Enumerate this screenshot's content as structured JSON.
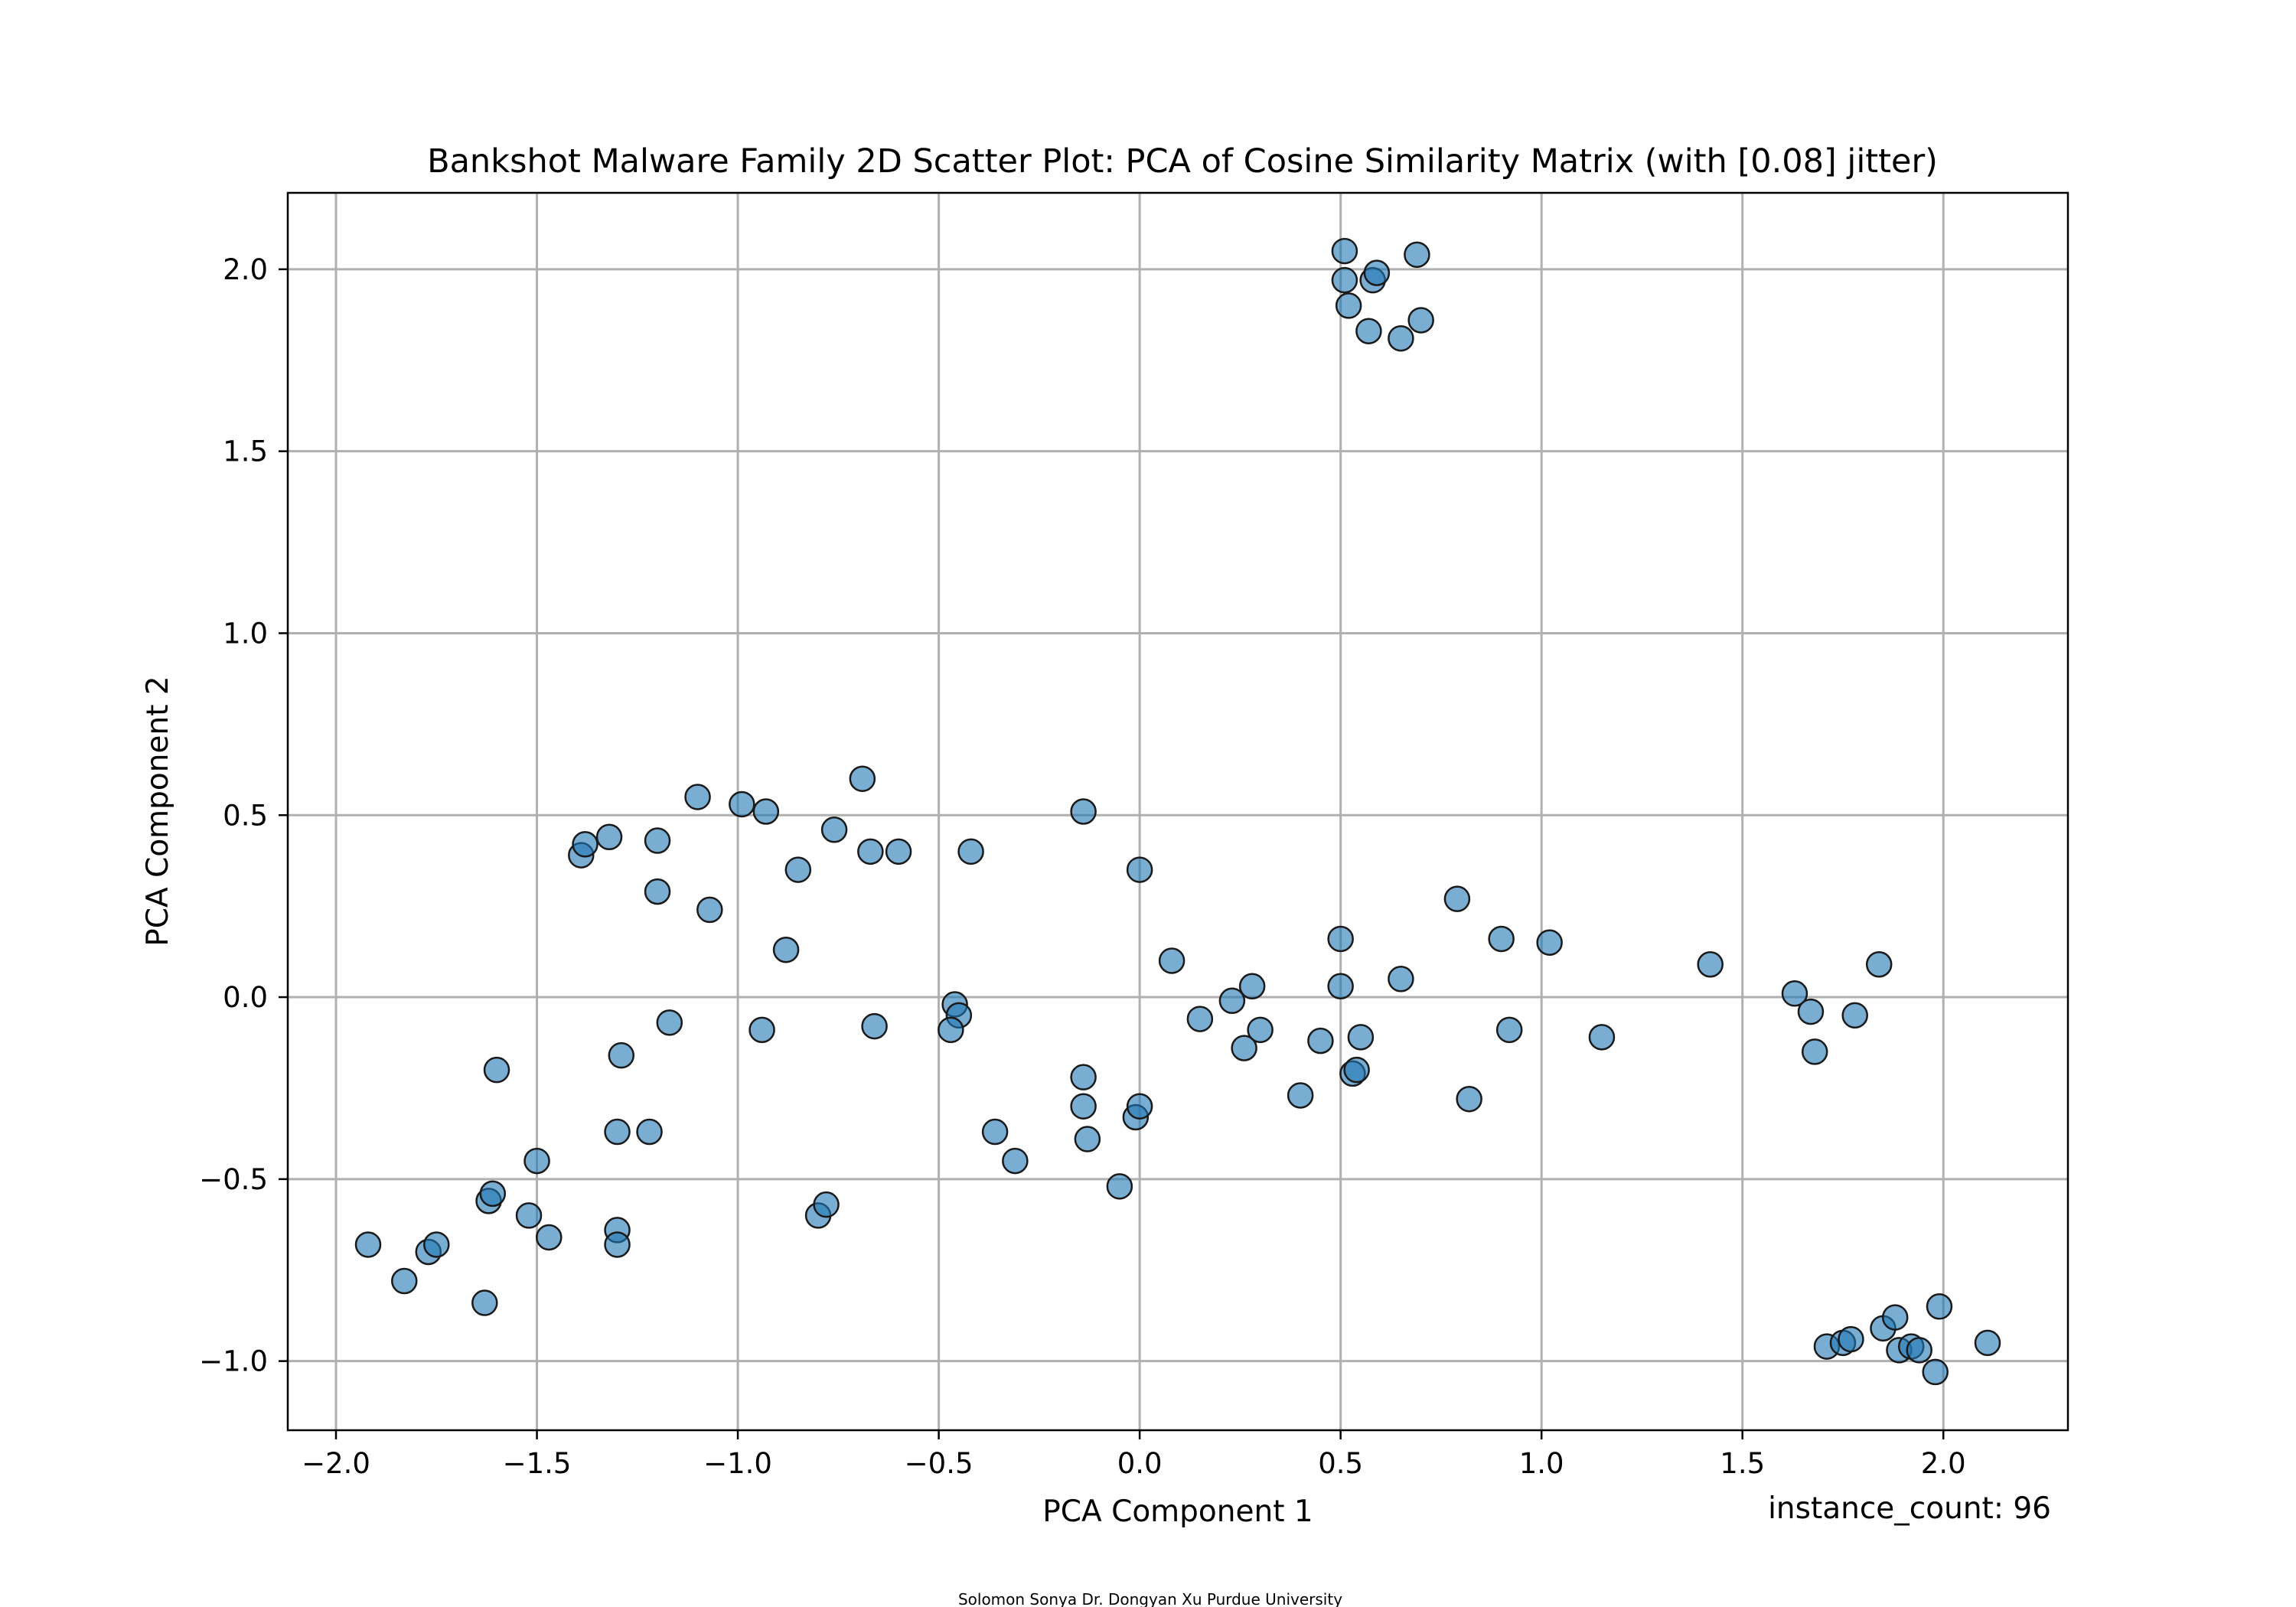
{
  "chart_data": {
    "type": "scatter",
    "title": "Bankshot Malware Family 2D Scatter Plot: PCA of Cosine Similarity Matrix (with [0.08] jitter)",
    "xlabel": "PCA Component 1",
    "ylabel": "PCA Component 2",
    "xlim": [
      -2.12,
      2.31
    ],
    "ylim": [
      -1.19,
      2.21
    ],
    "xticks": [
      -2.0,
      -1.5,
      -1.0,
      -0.5,
      0.0,
      0.5,
      1.0,
      1.5,
      2.0
    ],
    "yticks": [
      -1.0,
      -0.5,
      0.0,
      0.5,
      1.0,
      1.5,
      2.0
    ],
    "xtick_labels": [
      "−2.0",
      "−1.5",
      "−1.0",
      "−0.5",
      "0.0",
      "0.5",
      "1.0",
      "1.5",
      "2.0"
    ],
    "ytick_labels": [
      "−1.0",
      "−0.5",
      "0.0",
      "0.5",
      "1.0",
      "1.5",
      "2.0"
    ],
    "grid": true,
    "point_color": "#1f77b4",
    "annotation": "instance_count: 96",
    "footer": "Solomon Sonya    Dr. Dongyan Xu    Purdue University",
    "points": [
      [
        0.51,
        2.05
      ],
      [
        0.51,
        1.97
      ],
      [
        0.52,
        1.9
      ],
      [
        0.58,
        1.97
      ],
      [
        0.59,
        1.99
      ],
      [
        0.69,
        2.04
      ],
      [
        0.57,
        1.83
      ],
      [
        0.65,
        1.81
      ],
      [
        0.7,
        1.86
      ],
      [
        -1.92,
        -0.68
      ],
      [
        -1.83,
        -0.78
      ],
      [
        -1.77,
        -0.7
      ],
      [
        -1.75,
        -0.68
      ],
      [
        -1.63,
        -0.84
      ],
      [
        -1.62,
        -0.56
      ],
      [
        -1.61,
        -0.54
      ],
      [
        -1.6,
        -0.2
      ],
      [
        -1.52,
        -0.6
      ],
      [
        -1.5,
        -0.45
      ],
      [
        -1.47,
        -0.66
      ],
      [
        -1.3,
        -0.64
      ],
      [
        -1.3,
        -0.68
      ],
      [
        -1.3,
        -0.37
      ],
      [
        -1.29,
        -0.16
      ],
      [
        -1.22,
        -0.37
      ],
      [
        -1.17,
        -0.07
      ],
      [
        -1.39,
        0.39
      ],
      [
        -1.38,
        0.42
      ],
      [
        -1.32,
        0.44
      ],
      [
        -1.2,
        0.43
      ],
      [
        -1.2,
        0.29
      ],
      [
        -1.1,
        0.55
      ],
      [
        -1.07,
        0.24
      ],
      [
        -0.99,
        0.53
      ],
      [
        -0.93,
        0.51
      ],
      [
        -0.85,
        0.35
      ],
      [
        -0.88,
        0.13
      ],
      [
        -0.76,
        0.46
      ],
      [
        -0.69,
        0.6
      ],
      [
        -0.67,
        0.4
      ],
      [
        -0.6,
        0.4
      ],
      [
        -0.42,
        0.4
      ],
      [
        -0.14,
        0.51
      ],
      [
        0.0,
        0.35
      ],
      [
        -0.94,
        -0.09
      ],
      [
        -0.66,
        -0.08
      ],
      [
        -0.8,
        -0.6
      ],
      [
        -0.78,
        -0.57
      ],
      [
        -0.46,
        -0.02
      ],
      [
        -0.45,
        -0.05
      ],
      [
        -0.47,
        -0.09
      ],
      [
        -0.36,
        -0.37
      ],
      [
        -0.31,
        -0.45
      ],
      [
        -0.14,
        -0.22
      ],
      [
        -0.14,
        -0.3
      ],
      [
        -0.13,
        -0.39
      ],
      [
        -0.05,
        -0.52
      ],
      [
        -0.01,
        -0.33
      ],
      [
        0.0,
        -0.3
      ],
      [
        0.08,
        0.1
      ],
      [
        0.15,
        -0.06
      ],
      [
        0.23,
        -0.01
      ],
      [
        0.26,
        -0.14
      ],
      [
        0.28,
        0.03
      ],
      [
        0.3,
        -0.09
      ],
      [
        0.4,
        -0.27
      ],
      [
        0.45,
        -0.12
      ],
      [
        0.5,
        0.16
      ],
      [
        0.5,
        0.03
      ],
      [
        0.53,
        -0.21
      ],
      [
        0.54,
        -0.2
      ],
      [
        0.55,
        -0.11
      ],
      [
        0.65,
        0.05
      ],
      [
        0.79,
        0.27
      ],
      [
        0.82,
        -0.28
      ],
      [
        0.9,
        0.16
      ],
      [
        0.92,
        -0.09
      ],
      [
        1.02,
        0.15
      ],
      [
        1.15,
        -0.11
      ],
      [
        1.42,
        0.09
      ],
      [
        1.63,
        0.01
      ],
      [
        1.67,
        -0.04
      ],
      [
        1.68,
        -0.15
      ],
      [
        1.78,
        -0.05
      ],
      [
        1.84,
        0.09
      ],
      [
        1.71,
        -0.96
      ],
      [
        1.75,
        -0.95
      ],
      [
        1.77,
        -0.94
      ],
      [
        1.85,
        -0.91
      ],
      [
        1.88,
        -0.88
      ],
      [
        1.89,
        -0.97
      ],
      [
        1.92,
        -0.96
      ],
      [
        1.94,
        -0.97
      ],
      [
        1.98,
        -1.03
      ],
      [
        1.99,
        -0.85
      ],
      [
        2.11,
        -0.95
      ]
    ]
  }
}
